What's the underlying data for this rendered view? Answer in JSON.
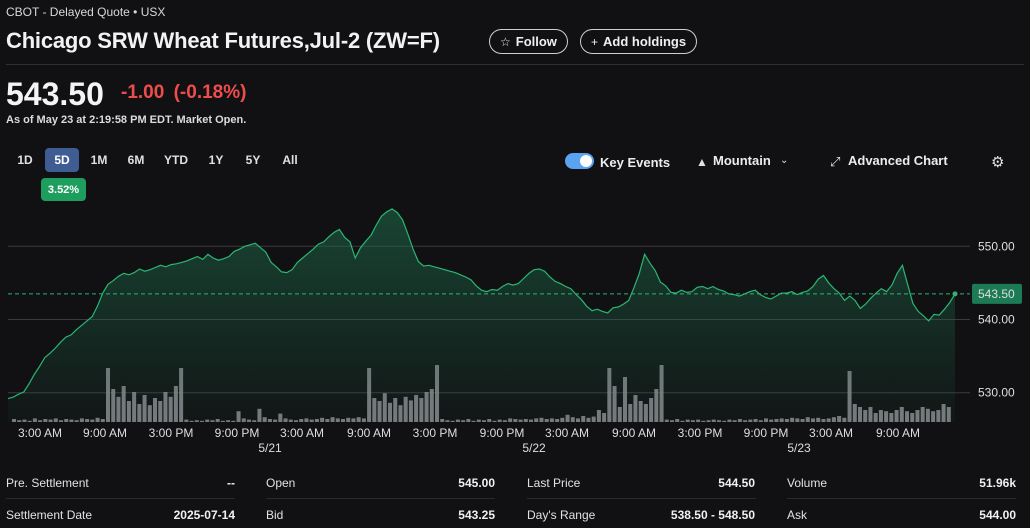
{
  "header": {
    "source": "CBOT - Delayed Quote • USX",
    "title": "Chicago SRW Wheat Futures,Jul-2 (ZW=F)",
    "follow_label": "Follow",
    "add_holdings_label": "Add holdings",
    "follow_icon": "star-icon",
    "add_icon": "plus-icon"
  },
  "quote": {
    "price": "543.50",
    "change": "-1.00",
    "change_pct": "(-0.18%)",
    "as_of": "As of May 23 at 2:19:58 PM EDT. Market Open.",
    "change_color": "#ef4d4d"
  },
  "controls": {
    "ranges": [
      "1D",
      "5D",
      "1M",
      "6M",
      "YTD",
      "1Y",
      "5Y",
      "All"
    ],
    "active_range": "5D",
    "range_change": "3.52%",
    "key_events_label": "Key Events",
    "key_events_on": true,
    "chart_type_label": "Mountain",
    "advanced_chart_label": "Advanced Chart",
    "settings_icon": "gear-icon"
  },
  "chart_data": {
    "type": "area",
    "ylim": [
      526,
      557
    ],
    "y_ticks": [
      530,
      540,
      550
    ],
    "y_tick_labels": [
      "530.00",
      "540.00",
      "550.00"
    ],
    "reference_price": 543.5,
    "last_price_label": "543.50",
    "line_color": "#2bb673",
    "x_tick_labels": [
      "3:00 AM",
      "9:00 AM",
      "3:00 PM",
      "9:00 PM",
      "3:00 AM",
      "9:00 AM",
      "3:00 PM",
      "9:00 PM",
      "3:00 AM",
      "9:00 AM",
      "3:00 PM",
      "9:00 PM",
      "3:00 AM",
      "9:00 AM"
    ],
    "date_labels": [
      "5/21",
      "5/22",
      "5/23"
    ],
    "series": [
      {
        "values": [
          529.2,
          529.4,
          529.8,
          530.1,
          531.2,
          532.5,
          533.6,
          534.8,
          535.4,
          536.1,
          536.9,
          537.6,
          537.9,
          538.6,
          539.2,
          539.8,
          540.4,
          541.8,
          543.6,
          544.8,
          545.3,
          545.9,
          546.3,
          546.1,
          546.4,
          546.9,
          546.6,
          546.8,
          547.1,
          547.4,
          547.2,
          547.5,
          547.6,
          547.8,
          548.0,
          548.3,
          548.6,
          548.2,
          548.9,
          548.4,
          548.1,
          548.3,
          548.6,
          549.3,
          549.6,
          550.0,
          550.2,
          550.4,
          549.8,
          549.2,
          547.8,
          547.2,
          546.5,
          546.4,
          546.8,
          547.8,
          548.4,
          549.0,
          549.6,
          550.3,
          550.6,
          551.3,
          551.9,
          552.3,
          551.2,
          550.6,
          548.4,
          549.8,
          550.7,
          551.5,
          552.9,
          554.1,
          554.7,
          555.1,
          554.6,
          553.6,
          551.7,
          549.6,
          547.9,
          547.3,
          547.4,
          547.2,
          547.0,
          546.8,
          546.6,
          546.4,
          546.1,
          545.8,
          545.4,
          544.6,
          544.0,
          543.8,
          544.1,
          544.0,
          544.5,
          544.9,
          544.7,
          544.9,
          545.6,
          546.3,
          546.8,
          546.9,
          546.6,
          545.8,
          545.2,
          544.9,
          544.5,
          544.2,
          543.4,
          542.7,
          541.8,
          541.2,
          541.4,
          541.1,
          540.9,
          541.6,
          541.7,
          542.1,
          542.6,
          544.4,
          546.3,
          548.9,
          547.7,
          546.7,
          545.1,
          544.6,
          543.7,
          543.6,
          544.0,
          543.7,
          543.8,
          544.4,
          544.5,
          544.2,
          544.5,
          544.1,
          543.9,
          543.5,
          543.4,
          543.2,
          543.5,
          543.8,
          544.0,
          543.4,
          543.0,
          542.8,
          543.2,
          543.6,
          543.6,
          543.8,
          543.4,
          543.7,
          543.9,
          544.5,
          545.5,
          546.0,
          545.0,
          544.2,
          543.6,
          542.6,
          543.2,
          542.6,
          541.5,
          542.1,
          542.9,
          543.6,
          544.2,
          543.8,
          544.7,
          546.3,
          547.4,
          544.8,
          542.2,
          541.1,
          540.5,
          539.8,
          540.7,
          540.6,
          541.4,
          542.3,
          543.5
        ]
      }
    ],
    "volume_relative": [
      0.05,
      0.03,
      0.04,
      0.02,
      0.06,
      0.03,
      0.05,
      0.04,
      0.06,
      0.03,
      0.05,
      0.04,
      0.03,
      0.06,
      0.05,
      0.04,
      0.07,
      0.05,
      0.9,
      0.55,
      0.42,
      0.6,
      0.35,
      0.5,
      0.3,
      0.45,
      0.28,
      0.4,
      0.35,
      0.5,
      0.42,
      0.6,
      0.9,
      0.04,
      0.02,
      0.03,
      0.02,
      0.04,
      0.03,
      0.05,
      0.02,
      0.03,
      0.02,
      0.18,
      0.06,
      0.04,
      0.03,
      0.22,
      0.08,
      0.05,
      0.04,
      0.14,
      0.06,
      0.04,
      0.03,
      0.05,
      0.06,
      0.04,
      0.05,
      0.07,
      0.05,
      0.08,
      0.06,
      0.05,
      0.07,
      0.06,
      0.08,
      0.06,
      0.9,
      0.4,
      0.35,
      0.48,
      0.32,
      0.4,
      0.28,
      0.42,
      0.36,
      0.45,
      0.4,
      0.5,
      0.55,
      0.95,
      0.05,
      0.03,
      0.02,
      0.04,
      0.03,
      0.05,
      0.02,
      0.04,
      0.03,
      0.05,
      0.02,
      0.04,
      0.03,
      0.06,
      0.05,
      0.04,
      0.05,
      0.04,
      0.06,
      0.07,
      0.05,
      0.06,
      0.05,
      0.07,
      0.12,
      0.08,
      0.06,
      0.1,
      0.07,
      0.09,
      0.2,
      0.15,
      0.9,
      0.6,
      0.25,
      0.75,
      0.3,
      0.45,
      0.35,
      0.3,
      0.4,
      0.55,
      0.95,
      0.04,
      0.03,
      0.05,
      0.02,
      0.04,
      0.03,
      0.04,
      0.02,
      0.03,
      0.04,
      0.03,
      0.02,
      0.04,
      0.03,
      0.05,
      0.03,
      0.04,
      0.05,
      0.03,
      0.06,
      0.04,
      0.05,
      0.06,
      0.05,
      0.07,
      0.06,
      0.05,
      0.08,
      0.06,
      0.07,
      0.05,
      0.06,
      0.08,
      0.1,
      0.07,
      0.85,
      0.3,
      0.25,
      0.2,
      0.25,
      0.15,
      0.2,
      0.18,
      0.15,
      0.2,
      0.25,
      0.18,
      0.15,
      0.2,
      0.25,
      0.22,
      0.18,
      0.2,
      0.3,
      0.25
    ]
  },
  "stats": {
    "col1": [
      {
        "label": "Pre. Settlement",
        "value": "--"
      },
      {
        "label": "Settlement Date",
        "value": "2025-07-14"
      }
    ],
    "col2": [
      {
        "label": "Open",
        "value": "545.00"
      },
      {
        "label": "Bid",
        "value": "543.25"
      }
    ],
    "col3": [
      {
        "label": "Last Price",
        "value": "544.50"
      },
      {
        "label": "Day's Range",
        "value": "538.50 - 548.50"
      }
    ],
    "col4": [
      {
        "label": "Volume",
        "value": "51.96k"
      },
      {
        "label": "Ask",
        "value": "544.00"
      }
    ]
  }
}
